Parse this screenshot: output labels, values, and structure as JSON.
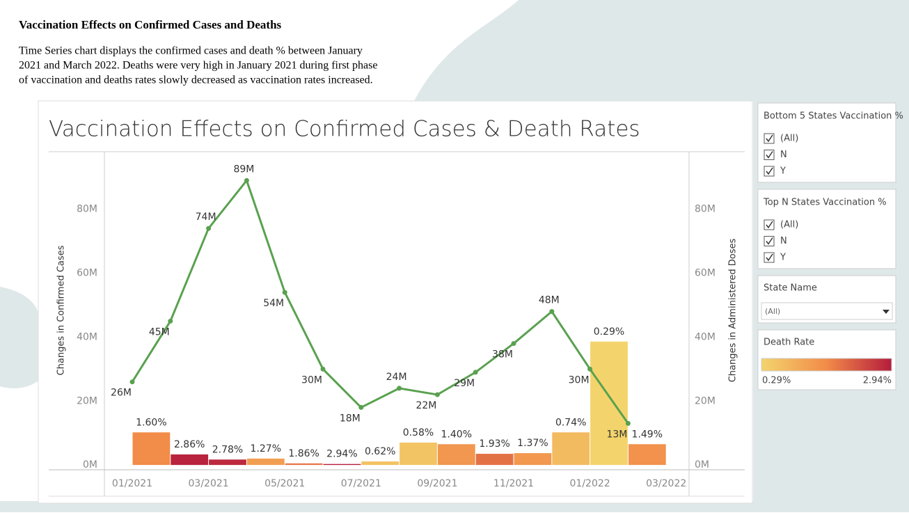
{
  "header": {
    "title": "Vaccination Effects on Confirmed Cases and Deaths",
    "description": [
      "Time Series chart displays the confirmed cases and death % between January",
      "2021 and March 2022. Deaths were very high in January 2021 during first phase",
      "of vaccination and deaths rates slowly decreased as vaccination rates increased."
    ]
  },
  "chart_data": {
    "type": "combo",
    "title": "Vaccination Effects on Confirmed Cases & Death Rates",
    "y_label": "Changes in Confirmed Cases",
    "y2_label": "Changes in Administered Doses",
    "xticks": [
      "01/2021",
      "03/2021",
      "05/2021",
      "07/2021",
      "09/2021",
      "11/2021",
      "01/2022",
      "03/2022"
    ],
    "ylim": [
      -1500000,
      98000000
    ],
    "yticks": [
      {
        "value": 0,
        "label": "0M"
      },
      {
        "value": 20000000,
        "label": "20M"
      },
      {
        "value": 40000000,
        "label": "40M"
      },
      {
        "value": 60000000,
        "label": "60M"
      },
      {
        "value": 80000000,
        "label": "80M"
      }
    ],
    "y2lim": [
      -1500000,
      98000000
    ],
    "y2ticks": [
      {
        "value": 0,
        "label": "0M"
      },
      {
        "value": 20000000,
        "label": "20M"
      },
      {
        "value": 40000000,
        "label": "40M"
      },
      {
        "value": 60000000,
        "label": "60M"
      },
      {
        "value": 80000000,
        "label": "80M"
      }
    ],
    "series": [
      {
        "type": "line",
        "color": "#59a14f",
        "values": [
          26000000,
          45000000,
          74000000,
          89000000,
          54000000,
          30000000,
          18000000,
          24000000,
          22000000,
          29000000,
          38000000,
          48000000,
          30000000,
          13000000
        ],
        "value_labels": [
          "26M",
          "45M",
          "74M",
          "89M",
          "54M",
          "30M",
          "18M",
          "24M",
          "22M",
          "29M",
          "38M",
          "48M",
          "30M",
          "13M"
        ]
      },
      {
        "type": "bar",
        "axis": "y2",
        "values": [
          10200000,
          3300000,
          1700000,
          2000000,
          500000,
          300000,
          1100000,
          7000000,
          6500000,
          3500000,
          3700000,
          10200000,
          38600000,
          6500000
        ],
        "death_rate": [
          1.6,
          2.86,
          2.78,
          1.27,
          1.86,
          2.94,
          0.62,
          0.58,
          1.4,
          1.93,
          1.37,
          0.74,
          0.29,
          1.49
        ],
        "death_rate_labels": [
          "1.60%",
          "2.86%",
          "2.78%",
          "1.27%",
          "1.86%",
          "2.94%",
          "0.62%",
          "0.58%",
          "1.40%",
          "1.93%",
          "1.37%",
          "0.74%",
          "0.29%",
          "1.49%"
        ]
      }
    ],
    "color_legend": {
      "title": "Death Rate",
      "colors": [
        "#f3d46c",
        "#f28b49",
        "#b51c3c"
      ],
      "min": {
        "value": 0.29,
        "label": "0.29%"
      },
      "max": {
        "value": 2.94,
        "label": "2.94%"
      }
    }
  },
  "filters": [
    {
      "title": "Bottom 5 States Vaccination %",
      "options": [
        "(All)",
        "N",
        "Y"
      ]
    },
    {
      "title": "Top N States Vaccination %",
      "options": [
        "(All)",
        "N",
        "Y"
      ]
    }
  ],
  "state_filter": {
    "title": "State Name",
    "value": "(All)"
  }
}
